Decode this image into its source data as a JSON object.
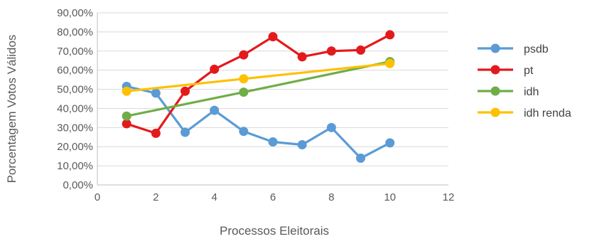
{
  "chart_data": {
    "type": "scatter",
    "xlabel": "Processos Eleitorais",
    "ylabel": "Porcentagem Votos Válidos",
    "xlim": [
      0,
      12
    ],
    "ylim": [
      0,
      0.9
    ],
    "x_ticks": [
      "0",
      "2",
      "4",
      "6",
      "8",
      "10",
      "12"
    ],
    "x_tick_values": [
      0,
      2,
      4,
      6,
      8,
      10,
      12
    ],
    "y_ticks": [
      "0,00%",
      "10,00%",
      "20,00%",
      "30,00%",
      "40,00%",
      "50,00%",
      "60,00%",
      "70,00%",
      "80,00%",
      "90,00%"
    ],
    "y_tick_values": [
      0,
      0.1,
      0.2,
      0.3,
      0.4,
      0.5,
      0.6,
      0.7,
      0.8,
      0.9
    ],
    "grid": "horizontal",
    "legend_position": "right",
    "series": [
      {
        "name": "psdb",
        "color": "#5B9BD5",
        "x": [
          1,
          2,
          3,
          4,
          5,
          6,
          7,
          8,
          9,
          10
        ],
        "y": [
          0.515,
          0.48,
          0.275,
          0.39,
          0.28,
          0.225,
          0.21,
          0.3,
          0.14,
          0.22
        ]
      },
      {
        "name": "pt",
        "color": "#E31A1C",
        "x": [
          1,
          2,
          3,
          4,
          5,
          6,
          7,
          8,
          9,
          10
        ],
        "y": [
          0.32,
          0.27,
          0.49,
          0.605,
          0.68,
          0.775,
          0.67,
          0.7,
          0.705,
          0.785
        ]
      },
      {
        "name": "idh",
        "color": "#70AD47",
        "x": [
          1,
          5,
          10
        ],
        "y": [
          0.36,
          0.485,
          0.645
        ]
      },
      {
        "name": "idh renda",
        "color": "#FFC000",
        "x": [
          1,
          5,
          10
        ],
        "y": [
          0.49,
          0.555,
          0.635
        ]
      }
    ]
  }
}
